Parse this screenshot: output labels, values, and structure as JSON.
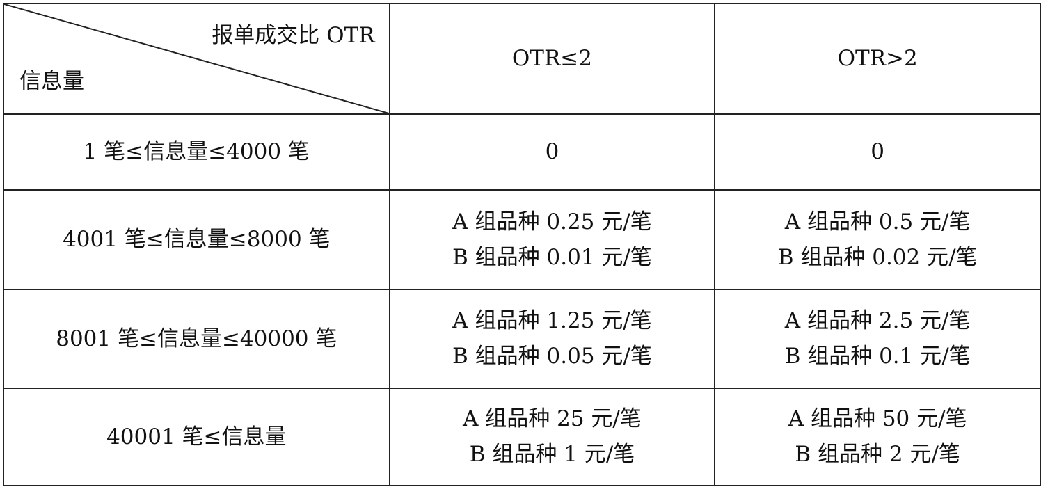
{
  "header": {
    "diag_top": "报单成交比 OTR",
    "diag_bottom": "信息量",
    "col1": "OTR≤2",
    "col2": "OTR>2"
  },
  "rows": [
    {
      "range": "1 笔≤信息量≤4000 笔",
      "c1": [
        "0"
      ],
      "c2": [
        "0"
      ]
    },
    {
      "range": "4001 笔≤信息量≤8000 笔",
      "c1": [
        "A 组品种 0.25 元/笔",
        "B 组品种 0.01 元/笔"
      ],
      "c2": [
        "A 组品种 0.5 元/笔",
        "B 组品种 0.02 元/笔"
      ]
    },
    {
      "range": "8001 笔≤信息量≤40000 笔",
      "c1": [
        "A 组品种 1.25 元/笔",
        "B 组品种 0.05 元/笔"
      ],
      "c2": [
        "A 组品种 2.5 元/笔",
        "B 组品种 0.1 元/笔"
      ]
    },
    {
      "range": "40001 笔≤信息量",
      "c1": [
        "A 组品种 25 元/笔",
        "B 组品种 1 元/笔"
      ],
      "c2": [
        "A 组品种 50 元/笔",
        "B 组品种 2 元/笔"
      ]
    }
  ]
}
